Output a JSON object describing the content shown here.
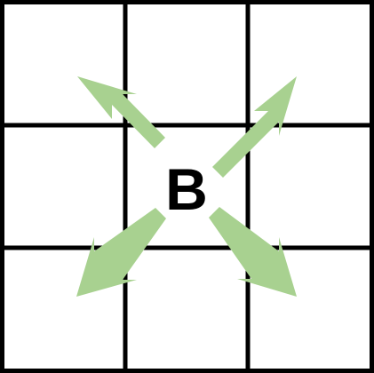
{
  "board": {
    "rows": 3,
    "cols": 3,
    "grid_color": "#000000",
    "cell_color": "#ffffff"
  },
  "piece": {
    "label": "B",
    "label_color": "#000000"
  },
  "moves": {
    "arrow_color": "#a8d190",
    "directions": [
      "up-left",
      "up-right",
      "down-left",
      "down-right"
    ]
  }
}
